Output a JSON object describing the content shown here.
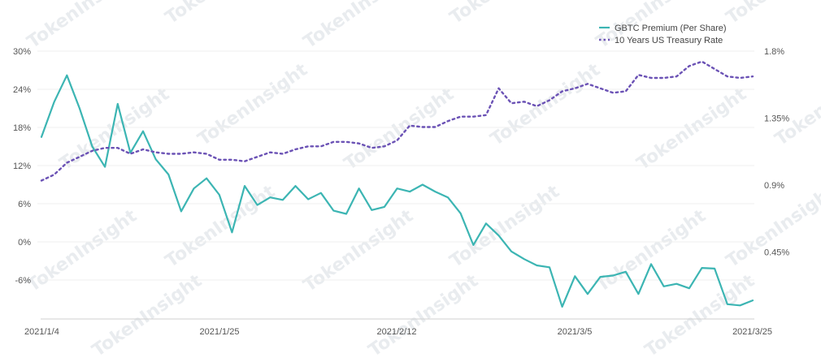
{
  "chart_data": {
    "type": "line",
    "title": "",
    "watermark": "TokenInsight",
    "x_tick_labels": [
      "2021/1/4",
      "2021/1/25",
      "2021/2/12",
      "2021/3/5",
      "2021/3/25"
    ],
    "y_left_tick_labels": [
      "30%",
      "24%",
      "18%",
      "12%",
      "6%",
      "0%",
      "-6%"
    ],
    "y_right_tick_labels": [
      "1.8%",
      "1.35%",
      "0.9%",
      "0.45%"
    ],
    "y_left_range_pct": [
      -12,
      30
    ],
    "y_right_range_pct": [
      0.0,
      1.8
    ],
    "legend": {
      "position": "top-right",
      "items": [
        "GBTC Premium (Per Share)",
        "10 Years US Treasury Rate"
      ]
    },
    "series": [
      {
        "name": "GBTC Premium (Per Share)",
        "axis": "left",
        "color": "#3cb5b3",
        "style": "solid",
        "unit": "%",
        "values": [
          16.5,
          22.0,
          26.2,
          21.0,
          15.0,
          11.8,
          21.7,
          14.0,
          17.4,
          13.0,
          10.6,
          4.8,
          8.4,
          10.0,
          7.4,
          1.5,
          8.8,
          5.8,
          7.0,
          6.6,
          8.8,
          6.7,
          7.7,
          4.9,
          4.4,
          8.4,
          5.0,
          5.5,
          8.4,
          7.9,
          9.0,
          7.9,
          7.0,
          4.5,
          -0.5,
          2.9,
          1.0,
          -1.5,
          -2.7,
          -3.7,
          -4.0,
          -10.2,
          -5.4,
          -8.2,
          -5.5,
          -5.3,
          -4.7,
          -8.2,
          -3.5,
          -7.0,
          -6.6,
          -7.3,
          -4.1,
          -4.2,
          -9.8,
          -10.0,
          -9.2
        ]
      },
      {
        "name": "10 Years US Treasury Rate",
        "axis": "right",
        "color": "#6b52b5",
        "style": "dotted",
        "unit": "%",
        "values": [
          0.93,
          0.97,
          1.05,
          1.09,
          1.13,
          1.15,
          1.15,
          1.11,
          1.14,
          1.12,
          1.11,
          1.11,
          1.12,
          1.11,
          1.07,
          1.07,
          1.06,
          1.09,
          1.12,
          1.11,
          1.14,
          1.16,
          1.16,
          1.19,
          1.19,
          1.18,
          1.15,
          1.16,
          1.2,
          1.3,
          1.29,
          1.29,
          1.33,
          1.36,
          1.36,
          1.37,
          1.55,
          1.45,
          1.46,
          1.43,
          1.47,
          1.53,
          1.55,
          1.58,
          1.55,
          1.52,
          1.53,
          1.64,
          1.62,
          1.62,
          1.63,
          1.7,
          1.73,
          1.68,
          1.63,
          1.62,
          1.63
        ]
      }
    ]
  }
}
